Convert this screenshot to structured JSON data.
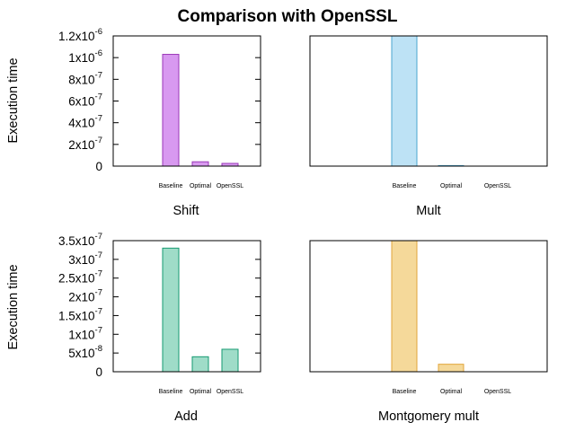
{
  "title": "Comparison with OpenSSL",
  "ylabel": "Execution time",
  "colors": {
    "shift": "#d899f0",
    "shift_stroke": "#9a37b8",
    "mult": "#bde2f5",
    "mult_stroke": "#4aa6cf",
    "add": "#9fdcc8",
    "add_stroke": "#169a72",
    "montgomery": "#f5d99a",
    "montgomery_stroke": "#e1a53b"
  },
  "chart_data": [
    {
      "type": "bar",
      "xlabel": "Shift",
      "ylabel": "Execution time",
      "categories": [
        "Baseline",
        "Optimal",
        "OpenSSL"
      ],
      "values": [
        1.03e-06,
        4e-08,
        2.5e-08
      ],
      "ylim": [
        0,
        1.2e-06
      ],
      "yticks": [
        {
          "m": "0",
          "e": ""
        },
        {
          "m": "2x10",
          "e": "-7"
        },
        {
          "m": "4x10",
          "e": "-7"
        },
        {
          "m": "6x10",
          "e": "-7"
        },
        {
          "m": "8x10",
          "e": "-7"
        },
        {
          "m": "1x10",
          "e": "-6"
        },
        {
          "m": "1.2x10",
          "e": "-6"
        }
      ],
      "ytick_values": [
        0,
        2e-07,
        4e-07,
        6e-07,
        8e-07,
        1e-06,
        1.2e-06
      ],
      "color": "shift"
    },
    {
      "type": "bar",
      "xlabel": "Mult",
      "categories": [
        "Baseline",
        "Optimal",
        "OpenSSL"
      ],
      "values": [
        1.2e-06,
        5e-09,
        5e-10
      ],
      "ylim": [
        0,
        1.2e-06
      ],
      "color": "mult"
    },
    {
      "type": "bar",
      "xlabel": "Add",
      "ylabel": "Execution time",
      "categories": [
        "Baseline",
        "Optimal",
        "OpenSSL"
      ],
      "values": [
        3.3e-07,
        4e-08,
        6e-08
      ],
      "ylim": [
        0,
        3.5e-07
      ],
      "yticks": [
        {
          "m": "0",
          "e": ""
        },
        {
          "m": "5x10",
          "e": "-8"
        },
        {
          "m": "1x10",
          "e": "-7"
        },
        {
          "m": "1.5x10",
          "e": "-7"
        },
        {
          "m": "2x10",
          "e": "-7"
        },
        {
          "m": "2.5x10",
          "e": "-7"
        },
        {
          "m": "3x10",
          "e": "-7"
        },
        {
          "m": "3.5x10",
          "e": "-7"
        }
      ],
      "ytick_values": [
        0,
        5e-08,
        1e-07,
        1.5e-07,
        2e-07,
        2.5e-07,
        3e-07,
        3.5e-07
      ],
      "color": "add"
    },
    {
      "type": "bar",
      "xlabel": "Montgomery mult",
      "categories": [
        "Baseline",
        "Optimal",
        "OpenSSL"
      ],
      "values": [
        3.5e-07,
        2e-08,
        0
      ],
      "ylim": [
        0,
        3.5e-07
      ],
      "color": "montgomery"
    }
  ]
}
